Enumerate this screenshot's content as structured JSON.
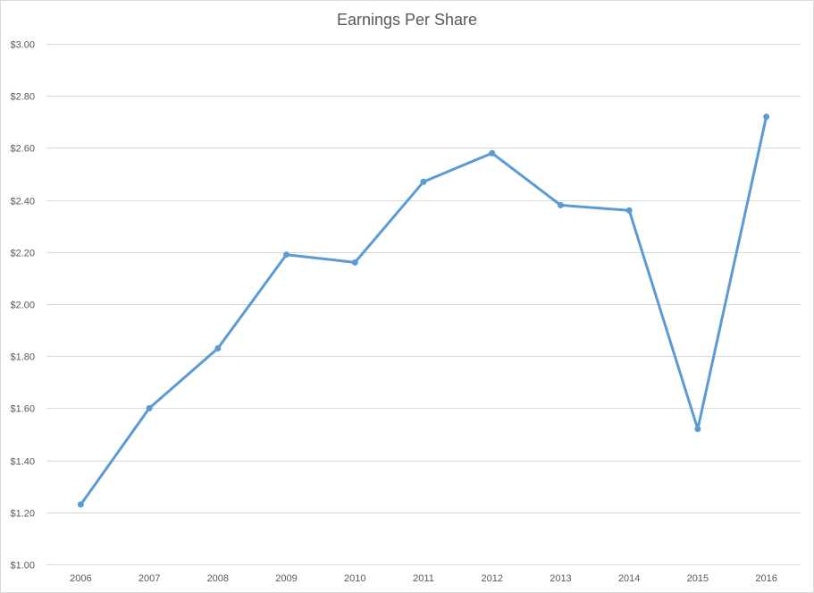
{
  "chart_data": {
    "type": "line",
    "title": "Earnings Per Share",
    "xlabel": "",
    "ylabel": "",
    "categories": [
      "2006",
      "2007",
      "2008",
      "2009",
      "2010",
      "2011",
      "2012",
      "2013",
      "2014",
      "2015",
      "2016"
    ],
    "series": [
      {
        "values": [
          1.23,
          1.6,
          1.83,
          2.19,
          2.16,
          2.47,
          2.58,
          2.38,
          2.36,
          1.52,
          2.72
        ],
        "color": "#5b9bd5"
      }
    ],
    "ylim": [
      1.0,
      3.0
    ],
    "yticks": [
      "$1.00",
      "$1.20",
      "$1.40",
      "$1.60",
      "$1.80",
      "$2.00",
      "$2.20",
      "$2.40",
      "$2.60",
      "$2.80",
      "$3.00"
    ],
    "grid": true,
    "gridline_color": "#d9d9d9",
    "legend": "none"
  }
}
